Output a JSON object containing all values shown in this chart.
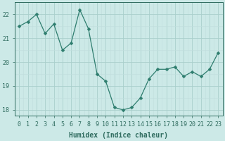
{
  "x": [
    0,
    1,
    2,
    3,
    4,
    5,
    6,
    7,
    8,
    9,
    10,
    11,
    12,
    13,
    14,
    15,
    16,
    17,
    18,
    19,
    20,
    21,
    22,
    23
  ],
  "y": [
    21.5,
    21.7,
    22.0,
    21.2,
    21.6,
    20.5,
    20.8,
    22.2,
    21.4,
    19.5,
    19.2,
    18.1,
    18.0,
    18.1,
    18.5,
    19.3,
    19.7,
    19.7,
    19.8,
    19.4,
    19.6,
    19.4,
    19.7,
    20.4
  ],
  "line_color": "#2e7d6e",
  "marker": "D",
  "marker_size": 2.5,
  "bg_color": "#cce9e7",
  "grid_major_color": "#aacfcc",
  "grid_minor_color": "#c0dedd",
  "xlabel": "Humidex (Indice chaleur)",
  "xlim": [
    -0.5,
    23.5
  ],
  "ylim": [
    17.75,
    22.5
  ],
  "yticks": [
    18,
    19,
    20,
    21,
    22
  ],
  "xticks": [
    0,
    1,
    2,
    3,
    4,
    5,
    6,
    7,
    8,
    9,
    10,
    11,
    12,
    13,
    14,
    15,
    16,
    17,
    18,
    19,
    20,
    21,
    22,
    23
  ],
  "tick_color": "#2e6b5e",
  "label_fontsize": 7,
  "tick_fontsize": 6
}
